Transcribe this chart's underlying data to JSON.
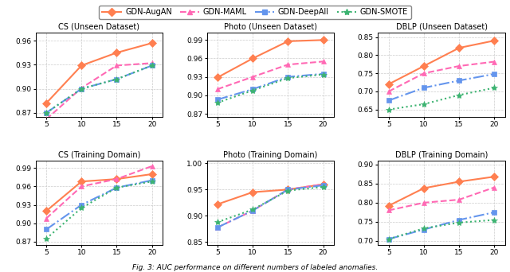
{
  "x": [
    5,
    10,
    15,
    20
  ],
  "titles_row1": [
    "CS (Unseen Dataset)",
    "Photo (Unseen Dataset)",
    "DBLP (Unseen Dataset)"
  ],
  "titles_row2": [
    "CS (Training Domain)",
    "Photo (Training Domain)",
    "DBLP (Training Domain)"
  ],
  "series_labels": [
    "GDN-AugAN",
    "GDN-MAML",
    "GDN-DeepAll",
    "GDN-SMOTE"
  ],
  "colors": [
    "#FF7F50",
    "#FF69B4",
    "#6495ED",
    "#3CB371"
  ],
  "row1_data": {
    "CS": {
      "AugAN": [
        0.882,
        0.929,
        0.945,
        0.957
      ],
      "MAML": [
        0.862,
        0.901,
        0.929,
        0.932
      ],
      "DeepAll": [
        0.87,
        0.9,
        0.912,
        0.929
      ],
      "SMOTE": [
        0.87,
        0.9,
        0.912,
        0.929
      ]
    },
    "Photo": {
      "AugAN": [
        0.929,
        0.96,
        0.988,
        0.99
      ],
      "MAML": [
        0.91,
        0.93,
        0.95,
        0.955
      ],
      "DeepAll": [
        0.893,
        0.91,
        0.93,
        0.935
      ],
      "SMOTE": [
        0.888,
        0.908,
        0.928,
        0.934
      ]
    },
    "DBLP": {
      "AugAN": [
        0.72,
        0.77,
        0.82,
        0.84
      ],
      "MAML": [
        0.7,
        0.75,
        0.77,
        0.782
      ],
      "DeepAll": [
        0.675,
        0.71,
        0.73,
        0.748
      ],
      "SMOTE": [
        0.65,
        0.665,
        0.69,
        0.71
      ]
    }
  },
  "row2_data": {
    "CS": {
      "AugAN": [
        0.92,
        0.968,
        0.972,
        0.98
      ],
      "MAML": [
        0.908,
        0.96,
        0.972,
        0.993
      ],
      "DeepAll": [
        0.89,
        0.93,
        0.958,
        0.97
      ],
      "SMOTE": [
        0.875,
        0.925,
        0.958,
        0.968
      ]
    },
    "Photo": {
      "AugAN": [
        0.922,
        0.945,
        0.95,
        0.96
      ],
      "MAML": [
        0.878,
        0.91,
        0.95,
        0.96
      ],
      "DeepAll": [
        0.878,
        0.91,
        0.95,
        0.958
      ],
      "SMOTE": [
        0.888,
        0.912,
        0.948,
        0.955
      ]
    },
    "DBLP": {
      "AugAN": [
        0.792,
        0.838,
        0.855,
        0.868
      ],
      "MAML": [
        0.78,
        0.8,
        0.808,
        0.84
      ],
      "DeepAll": [
        0.705,
        0.73,
        0.755,
        0.775
      ],
      "SMOTE": [
        0.705,
        0.733,
        0.748,
        0.755
      ]
    }
  },
  "ylims_row1": {
    "CS": [
      0.865,
      0.97
    ],
    "Photo": [
      0.865,
      1.002
    ],
    "DBLP": [
      0.63,
      0.862
    ]
  },
  "ylims_row2": {
    "CS": [
      0.865,
      1.002
    ],
    "Photo": [
      0.845,
      1.005
    ],
    "DBLP": [
      0.69,
      0.91
    ]
  },
  "yticks_row1": {
    "CS": [
      0.87,
      0.9,
      0.93,
      0.96
    ],
    "Photo": [
      0.87,
      0.9,
      0.93,
      0.96,
      0.99
    ],
    "DBLP": [
      0.65,
      0.7,
      0.75,
      0.8,
      0.85
    ]
  },
  "yticks_row2": {
    "CS": [
      0.87,
      0.9,
      0.93,
      0.96,
      0.99
    ],
    "Photo": [
      0.85,
      0.9,
      0.95,
      1.0
    ],
    "DBLP": [
      0.7,
      0.75,
      0.8,
      0.85,
      0.9
    ]
  },
  "marker_styles": [
    "D",
    "^",
    "s",
    "*"
  ],
  "line_styles": [
    "-",
    "--",
    "-.",
    ":"
  ],
  "markersize": [
    5,
    5,
    4,
    6
  ],
  "linewidth": 1.5,
  "bg_color": "#FFFFFF",
  "grid_color": "#CCCCCC",
  "caption": "Fig. 3: AUC performance on different numbers of labeled anomalies."
}
